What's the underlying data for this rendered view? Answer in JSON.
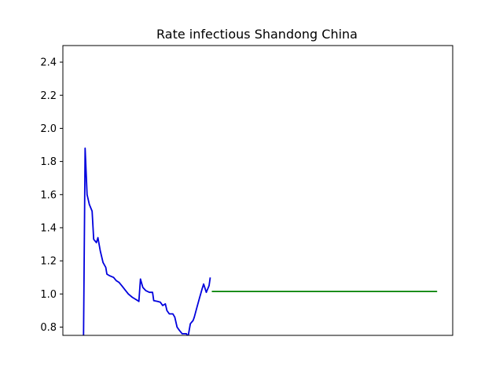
{
  "chart_data": {
    "type": "line",
    "title": "Rate infectious Shandong China",
    "xlabel": "",
    "ylabel": "",
    "ylim": [
      0.75,
      2.5
    ],
    "yticks": [
      0.8,
      1.0,
      1.2,
      1.4,
      1.6,
      1.8,
      2.0,
      2.2,
      2.4
    ],
    "ytick_labels": [
      "0.8",
      "1.0",
      "1.2",
      "1.4",
      "1.6",
      "1.8",
      "2.0",
      "2.2",
      "2.4"
    ],
    "xlim": [
      0,
      100
    ],
    "x_ticks_visible": false,
    "grid": false,
    "series": [
      {
        "color": "#0000dd",
        "points": [
          [
            5.3,
            0.75
          ],
          [
            5.7,
            1.88
          ],
          [
            6.2,
            1.6
          ],
          [
            6.8,
            1.54
          ],
          [
            7.5,
            1.5
          ],
          [
            7.9,
            1.33
          ],
          [
            8.6,
            1.31
          ],
          [
            9.0,
            1.34
          ],
          [
            9.6,
            1.26
          ],
          [
            10.3,
            1.19
          ],
          [
            11.0,
            1.16
          ],
          [
            11.3,
            1.12
          ],
          [
            12.0,
            1.11
          ],
          [
            13.0,
            1.1
          ],
          [
            13.7,
            1.08
          ],
          [
            14.4,
            1.07
          ],
          [
            15.1,
            1.05
          ],
          [
            16.1,
            1.02
          ],
          [
            16.8,
            1.0
          ],
          [
            17.8,
            0.98
          ],
          [
            18.5,
            0.97
          ],
          [
            19.2,
            0.96
          ],
          [
            19.5,
            0.955
          ],
          [
            19.9,
            1.09
          ],
          [
            20.5,
            1.04
          ],
          [
            21.3,
            1.02
          ],
          [
            22.2,
            1.01
          ],
          [
            23.0,
            1.01
          ],
          [
            23.3,
            0.96
          ],
          [
            24.3,
            0.955
          ],
          [
            25.0,
            0.95
          ],
          [
            25.6,
            0.93
          ],
          [
            26.3,
            0.94
          ],
          [
            26.7,
            0.9
          ],
          [
            27.3,
            0.88
          ],
          [
            28.2,
            0.88
          ],
          [
            28.7,
            0.86
          ],
          [
            29.3,
            0.8
          ],
          [
            29.9,
            0.78
          ],
          [
            30.6,
            0.76
          ],
          [
            31.0,
            0.76
          ],
          [
            31.7,
            0.76
          ],
          [
            32.1,
            0.74
          ],
          [
            32.7,
            0.82
          ],
          [
            33.4,
            0.84
          ],
          [
            33.7,
            0.86
          ],
          [
            34.4,
            0.92
          ],
          [
            35.1,
            0.98
          ],
          [
            35.7,
            1.03
          ],
          [
            36.1,
            1.06
          ],
          [
            36.8,
            1.01
          ],
          [
            37.5,
            1.05
          ],
          [
            37.8,
            1.1
          ]
        ]
      },
      {
        "color": "#008000",
        "points": [
          [
            38.2,
            1.015
          ],
          [
            96.0,
            1.015
          ]
        ]
      }
    ]
  }
}
